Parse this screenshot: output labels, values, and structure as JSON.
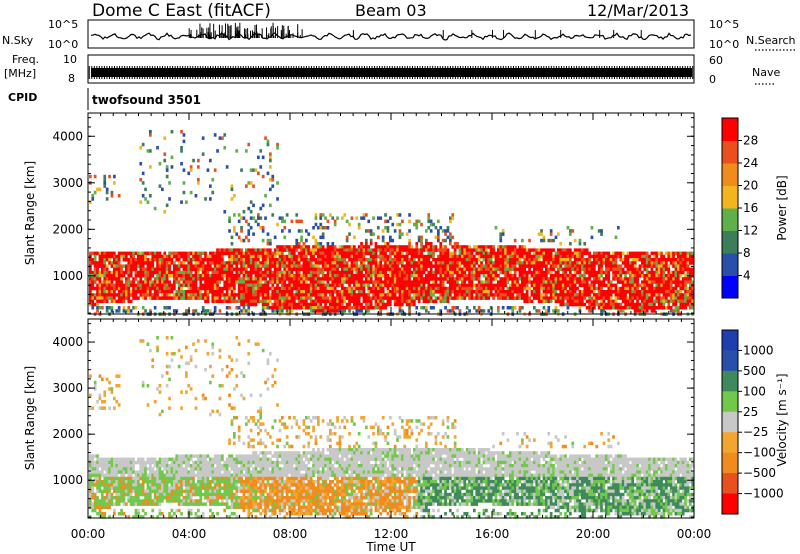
{
  "header": {
    "station": "Dome C East (fitACF)",
    "beam": "Beam 03",
    "date": "12/Mar/2013"
  },
  "status_panels": {
    "nsky_label": "N.Sky",
    "nsky_ticks": [
      "10^5",
      "10^0"
    ],
    "nsearch_label": "N.Search",
    "nsearch_ticks": [
      "10^5",
      "10^0"
    ],
    "freq_label": [
      "Freq.",
      "[MHz]"
    ],
    "freq_ticks": [
      "10",
      "8"
    ],
    "nave_label": "Nave",
    "nave_ticks": [
      "60",
      "0"
    ],
    "cpid_label": "CPID",
    "cpid_value": "twofsound 3501"
  },
  "colors": {
    "power_scale": [
      "#0000ff",
      "#2a4fa8",
      "#3d7d5a",
      "#5fb04a",
      "#f2b51e",
      "#f08c1e",
      "#e8501e",
      "#ff0000"
    ],
    "velocity_scale": [
      "#ff0000",
      "#e8501e",
      "#f08c1e",
      "#f2a530",
      "#c8c8c8",
      "#72c84a",
      "#3f8a5a",
      "#2a4fa8",
      "#1f3fb0"
    ]
  },
  "chart_data": [
    {
      "type": "heatmap",
      "title": "",
      "xlabel": "",
      "ylabel": "Slant Range [km]",
      "x_ticks": [
        "00:00",
        "04:00",
        "08:00",
        "12:00",
        "16:00",
        "20:00",
        "00:00"
      ],
      "y_ticks": [
        "1000",
        "2000",
        "3000",
        "4000"
      ],
      "ylim": [
        180,
        4500
      ],
      "colorbar_label": "Power [dB]",
      "colorbar_ticks": [
        "4",
        "8",
        "12",
        "16",
        "20",
        "24",
        "28"
      ],
      "colorbar_range": [
        0,
        32
      ],
      "dominant_features": [
        {
          "time_range": [
            "00:00",
            "24:00"
          ],
          "range_km": [
            400,
            1700
          ],
          "level": "high"
        },
        {
          "time_range": [
            "02:00",
            "07:00"
          ],
          "range_km": [
            2000,
            4200
          ],
          "level": "patchy"
        }
      ]
    },
    {
      "type": "heatmap",
      "title": "",
      "xlabel": "Time UT",
      "ylabel": "Slant Range [km]",
      "x_ticks": [
        "00:00",
        "04:00",
        "08:00",
        "12:00",
        "16:00",
        "20:00",
        "00:00"
      ],
      "y_ticks": [
        "1000",
        "2000",
        "3000",
        "4000"
      ],
      "ylim": [
        180,
        4500
      ],
      "colorbar_label": "Velocity [m s⁻¹]",
      "colorbar_ticks": [
        "1000",
        "500",
        "100",
        "25",
        "−25",
        "−100",
        "−500",
        "−1000"
      ],
      "dominant_features": [
        {
          "time_range": [
            "00:00",
            "06:00"
          ],
          "range_km": [
            400,
            1100
          ],
          "level": "positive"
        },
        {
          "time_range": [
            "06:00",
            "13:00"
          ],
          "range_km": [
            300,
            1100
          ],
          "level": "negative"
        },
        {
          "time_range": [
            "14:00",
            "24:00"
          ],
          "range_km": [
            400,
            1300
          ],
          "level": "positive"
        }
      ]
    }
  ]
}
